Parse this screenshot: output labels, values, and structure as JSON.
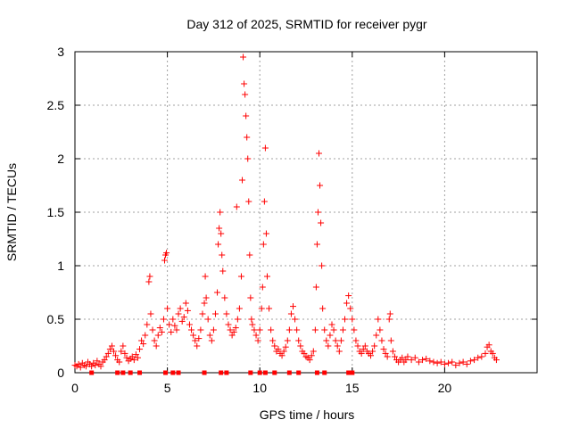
{
  "chart_data": {
    "type": "scatter",
    "title": "Day 312 of 2025, SRMTID for receiver pygr",
    "xlabel": "GPS time / hours",
    "ylabel": "SRMTID / TECUs",
    "xlim": [
      0,
      25
    ],
    "ylim": [
      0,
      3
    ],
    "xticks": [
      "0",
      "5",
      "10",
      "15",
      "20"
    ],
    "yticks": [
      "0",
      "0.5",
      "1",
      "1.5",
      "2",
      "2.5",
      "3"
    ],
    "grid": true,
    "marker": "+",
    "color": "#ff0000",
    "series": [
      {
        "name": "SRMTID",
        "points": [
          [
            0.0,
            0.07
          ],
          [
            0.1,
            0.06
          ],
          [
            0.2,
            0.08
          ],
          [
            0.3,
            0.05
          ],
          [
            0.4,
            0.09
          ],
          [
            0.5,
            0.07
          ],
          [
            0.6,
            0.06
          ],
          [
            0.7,
            0.1
          ],
          [
            0.8,
            0.08
          ],
          [
            0.9,
            0.06
          ],
          [
            1.0,
            0.09
          ],
          [
            1.1,
            0.07
          ],
          [
            1.2,
            0.11
          ],
          [
            1.3,
            0.08
          ],
          [
            1.4,
            0.06
          ],
          [
            1.5,
            0.1
          ],
          [
            1.6,
            0.12
          ],
          [
            1.7,
            0.15
          ],
          [
            1.8,
            0.18
          ],
          [
            1.9,
            0.22
          ],
          [
            2.0,
            0.25
          ],
          [
            2.1,
            0.2
          ],
          [
            2.2,
            0.16
          ],
          [
            2.3,
            0.12
          ],
          [
            2.4,
            0.1
          ],
          [
            2.5,
            0.2
          ],
          [
            2.6,
            0.25
          ],
          [
            2.7,
            0.18
          ],
          [
            2.8,
            0.14
          ],
          [
            2.9,
            0.11
          ],
          [
            3.0,
            0.13
          ],
          [
            3.1,
            0.15
          ],
          [
            3.2,
            0.12
          ],
          [
            3.3,
            0.17
          ],
          [
            3.4,
            0.14
          ],
          [
            3.5,
            0.22
          ],
          [
            3.6,
            0.3
          ],
          [
            3.7,
            0.27
          ],
          [
            3.8,
            0.35
          ],
          [
            3.9,
            0.45
          ],
          [
            4.0,
            0.85
          ],
          [
            4.05,
            0.9
          ],
          [
            4.1,
            0.55
          ],
          [
            4.2,
            0.4
          ],
          [
            4.3,
            0.3
          ],
          [
            4.4,
            0.25
          ],
          [
            4.5,
            0.35
          ],
          [
            4.6,
            0.42
          ],
          [
            4.7,
            0.38
          ],
          [
            4.8,
            0.5
          ],
          [
            4.85,
            1.05
          ],
          [
            4.9,
            1.1
          ],
          [
            4.95,
            1.12
          ],
          [
            5.0,
            0.6
          ],
          [
            5.1,
            0.45
          ],
          [
            5.2,
            0.38
          ],
          [
            5.3,
            0.5
          ],
          [
            5.4,
            0.44
          ],
          [
            5.5,
            0.4
          ],
          [
            5.6,
            0.55
          ],
          [
            5.7,
            0.6
          ],
          [
            5.8,
            0.48
          ],
          [
            5.9,
            0.52
          ],
          [
            6.0,
            0.65
          ],
          [
            6.1,
            0.58
          ],
          [
            6.2,
            0.45
          ],
          [
            6.3,
            0.4
          ],
          [
            6.4,
            0.35
          ],
          [
            6.5,
            0.3
          ],
          [
            6.6,
            0.25
          ],
          [
            6.7,
            0.32
          ],
          [
            6.8,
            0.4
          ],
          [
            6.9,
            0.55
          ],
          [
            7.0,
            0.65
          ],
          [
            7.05,
            0.9
          ],
          [
            7.1,
            0.7
          ],
          [
            7.2,
            0.5
          ],
          [
            7.3,
            0.35
          ],
          [
            7.4,
            0.3
          ],
          [
            7.5,
            0.4
          ],
          [
            7.6,
            0.55
          ],
          [
            7.7,
            0.75
          ],
          [
            7.75,
            1.2
          ],
          [
            7.8,
            1.35
          ],
          [
            7.85,
            1.5
          ],
          [
            7.9,
            1.3
          ],
          [
            7.95,
            1.1
          ],
          [
            8.0,
            0.95
          ],
          [
            8.1,
            0.7
          ],
          [
            8.2,
            0.55
          ],
          [
            8.3,
            0.45
          ],
          [
            8.4,
            0.4
          ],
          [
            8.5,
            0.35
          ],
          [
            8.6,
            0.38
          ],
          [
            8.7,
            0.42
          ],
          [
            8.75,
            1.55
          ],
          [
            8.8,
            0.5
          ],
          [
            8.9,
            0.6
          ],
          [
            9.0,
            0.9
          ],
          [
            9.05,
            1.8
          ],
          [
            9.1,
            2.95
          ],
          [
            9.15,
            2.7
          ],
          [
            9.2,
            2.6
          ],
          [
            9.25,
            2.4
          ],
          [
            9.3,
            2.2
          ],
          [
            9.35,
            2.0
          ],
          [
            9.4,
            1.6
          ],
          [
            9.45,
            1.1
          ],
          [
            9.5,
            0.7
          ],
          [
            9.55,
            0.5
          ],
          [
            9.6,
            0.45
          ],
          [
            9.7,
            0.4
          ],
          [
            9.8,
            0.35
          ],
          [
            9.9,
            0.3
          ],
          [
            10.0,
            0.4
          ],
          [
            10.1,
            0.6
          ],
          [
            10.15,
            0.8
          ],
          [
            10.2,
            1.2
          ],
          [
            10.25,
            1.6
          ],
          [
            10.3,
            2.1
          ],
          [
            10.35,
            1.3
          ],
          [
            10.4,
            0.9
          ],
          [
            10.5,
            0.6
          ],
          [
            10.6,
            0.4
          ],
          [
            10.7,
            0.3
          ],
          [
            10.8,
            0.25
          ],
          [
            10.9,
            0.2
          ],
          [
            11.0,
            0.22
          ],
          [
            11.1,
            0.18
          ],
          [
            11.2,
            0.16
          ],
          [
            11.3,
            0.2
          ],
          [
            11.4,
            0.24
          ],
          [
            11.5,
            0.3
          ],
          [
            11.6,
            0.4
          ],
          [
            11.7,
            0.55
          ],
          [
            11.8,
            0.62
          ],
          [
            11.9,
            0.5
          ],
          [
            12.0,
            0.4
          ],
          [
            12.1,
            0.3
          ],
          [
            12.2,
            0.25
          ],
          [
            12.3,
            0.2
          ],
          [
            12.4,
            0.18
          ],
          [
            12.5,
            0.15
          ],
          [
            12.6,
            0.14
          ],
          [
            12.7,
            0.12
          ],
          [
            12.8,
            0.16
          ],
          [
            12.9,
            0.2
          ],
          [
            13.0,
            0.4
          ],
          [
            13.05,
            0.8
          ],
          [
            13.1,
            1.2
          ],
          [
            13.15,
            1.5
          ],
          [
            13.2,
            2.05
          ],
          [
            13.25,
            1.75
          ],
          [
            13.3,
            1.4
          ],
          [
            13.35,
            1.0
          ],
          [
            13.4,
            0.6
          ],
          [
            13.5,
            0.4
          ],
          [
            13.6,
            0.3
          ],
          [
            13.7,
            0.25
          ],
          [
            13.8,
            0.35
          ],
          [
            13.9,
            0.45
          ],
          [
            14.0,
            0.4
          ],
          [
            14.1,
            0.3
          ],
          [
            14.2,
            0.25
          ],
          [
            14.3,
            0.2
          ],
          [
            14.4,
            0.3
          ],
          [
            14.5,
            0.4
          ],
          [
            14.6,
            0.5
          ],
          [
            14.7,
            0.65
          ],
          [
            14.8,
            0.72
          ],
          [
            14.9,
            0.6
          ],
          [
            15.0,
            0.5
          ],
          [
            15.1,
            0.4
          ],
          [
            15.2,
            0.3
          ],
          [
            15.3,
            0.25
          ],
          [
            15.4,
            0.2
          ],
          [
            15.5,
            0.18
          ],
          [
            15.6,
            0.22
          ],
          [
            15.7,
            0.25
          ],
          [
            15.8,
            0.2
          ],
          [
            15.9,
            0.18
          ],
          [
            16.0,
            0.16
          ],
          [
            16.1,
            0.2
          ],
          [
            16.2,
            0.25
          ],
          [
            16.3,
            0.35
          ],
          [
            16.4,
            0.5
          ],
          [
            16.5,
            0.4
          ],
          [
            16.6,
            0.3
          ],
          [
            16.7,
            0.22
          ],
          [
            16.8,
            0.18
          ],
          [
            16.9,
            0.15
          ],
          [
            17.0,
            0.5
          ],
          [
            17.05,
            0.55
          ],
          [
            17.1,
            0.3
          ],
          [
            17.2,
            0.2
          ],
          [
            17.3,
            0.15
          ],
          [
            17.4,
            0.12
          ],
          [
            17.5,
            0.1
          ],
          [
            17.6,
            0.12
          ],
          [
            17.7,
            0.14
          ],
          [
            17.8,
            0.1
          ],
          [
            17.9,
            0.12
          ],
          [
            18.0,
            0.15
          ],
          [
            18.2,
            0.12
          ],
          [
            18.4,
            0.14
          ],
          [
            18.6,
            0.1
          ],
          [
            18.8,
            0.12
          ],
          [
            19.0,
            0.13
          ],
          [
            19.2,
            0.11
          ],
          [
            19.4,
            0.1
          ],
          [
            19.6,
            0.09
          ],
          [
            19.8,
            0.1
          ],
          [
            20.0,
            0.08
          ],
          [
            20.2,
            0.09
          ],
          [
            20.4,
            0.1
          ],
          [
            20.6,
            0.07
          ],
          [
            20.8,
            0.09
          ],
          [
            21.0,
            0.1
          ],
          [
            21.2,
            0.08
          ],
          [
            21.4,
            0.11
          ],
          [
            21.6,
            0.12
          ],
          [
            21.8,
            0.14
          ],
          [
            22.0,
            0.15
          ],
          [
            22.2,
            0.18
          ],
          [
            22.3,
            0.24
          ],
          [
            22.4,
            0.26
          ],
          [
            22.5,
            0.2
          ],
          [
            22.6,
            0.18
          ],
          [
            22.7,
            0.14
          ],
          [
            22.8,
            0.12
          ]
        ]
      }
    ],
    "zero_markers_x": [
      0.9,
      2.3,
      2.6,
      3.0,
      3.5,
      4.9,
      5.3,
      5.6,
      7.0,
      7.9,
      8.2,
      9.5,
      10.0,
      10.3,
      10.8,
      11.6,
      12.1,
      13.1,
      13.5,
      14.8,
      15.0
    ]
  }
}
